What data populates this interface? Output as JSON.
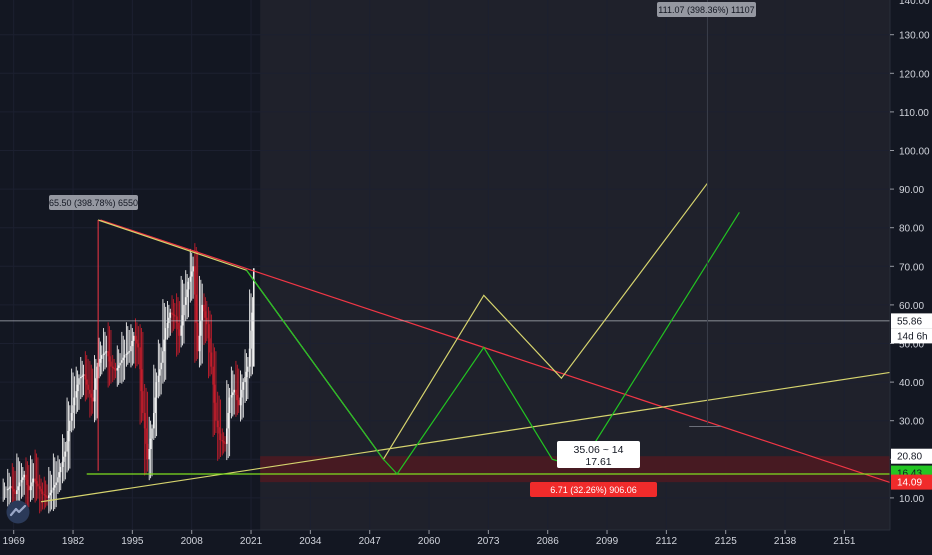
{
  "chart_data": {
    "type": "line",
    "title": "",
    "x_ticks": [
      "1969",
      "1982",
      "1995",
      "2008",
      "2021",
      "2034",
      "2047",
      "2060",
      "2073",
      "2086",
      "2099",
      "2112",
      "2125",
      "2138",
      "2151"
    ],
    "y_ticks": [
      "10.00",
      "20.00",
      "30.00",
      "40.00",
      "50.00",
      "60.00",
      "70.00",
      "80.00",
      "90.00",
      "100.00",
      "110.00",
      "120.00",
      "130.00"
    ],
    "y_top_partial": "140.00",
    "ylim": [
      5,
      142
    ],
    "xlim": [
      1966,
      2161
    ],
    "grid": true,
    "price_bars": {
      "years": [
        1967,
        1968,
        1969,
        1970,
        1971,
        1972,
        1973,
        1974,
        1975,
        1976,
        1977,
        1978,
        1979,
        1980,
        1981,
        1982,
        1983,
        1984,
        1985,
        1986,
        1987,
        1988,
        1989,
        1990,
        1991,
        1992,
        1993,
        1994,
        1995,
        1996,
        1997,
        1998,
        1999,
        2000,
        2001,
        2002,
        2003,
        2004,
        2005,
        2006,
        2007,
        2008,
        2009,
        2010,
        2011,
        2012,
        2013,
        2014,
        2015,
        2016,
        2017,
        2018,
        2019,
        2020,
        2021
      ],
      "close": [
        12,
        13,
        11,
        14,
        16,
        12,
        15,
        13,
        11,
        10,
        12,
        14,
        18,
        22,
        30,
        36,
        41,
        42,
        38,
        35,
        44,
        47,
        48,
        44,
        43,
        45,
        47,
        48,
        52,
        49,
        32,
        20,
        28,
        40,
        45,
        54,
        58,
        57,
        52,
        60,
        66,
        70,
        48,
        60,
        55,
        44,
        30,
        25,
        24,
        36,
        38,
        34,
        40,
        44,
        58
      ]
    },
    "series": [
      {
        "values": [
          [
            1987.5,
            82
          ],
          [
            2020,
            69
          ],
          [
            2050,
            20
          ],
          [
            2072,
            62.5
          ],
          [
            2089,
            41
          ],
          [
            2121,
            91.5
          ]
        ]
      },
      {
        "values": [
          [
            2020,
            69
          ],
          [
            2050,
            20
          ],
          [
            2053,
            16.2
          ],
          [
            2072,
            49
          ],
          [
            2087,
            20
          ],
          [
            2093,
            18
          ],
          [
            2128,
            84
          ]
        ]
      }
    ],
    "trendlines": [
      {
        "from": [
          1988,
          82
        ],
        "to": [
          2161,
          14
        ]
      },
      {
        "from": [
          1975,
          9
        ],
        "to": [
          2161,
          42.5
        ]
      },
      {
        "from": [
          1985,
          16.2
        ],
        "to": [
          2161,
          16.2
        ]
      }
    ],
    "zone": {
      "x_from": 2023,
      "x_to": 2161,
      "y_from": 14.09,
      "y_to": 20.8
    },
    "crosshair_price": 55.86,
    "annotations": {
      "left_label": "65.50 (398.78%) 6550",
      "top_label": "111.07 (398.36%) 11107",
      "range_label_line1": "35.06 ~ 14",
      "range_label_line2": "17.61",
      "zone_label": "6.71 (32.26%) 906.06"
    },
    "price_tags": {
      "crosshair": "55.86",
      "countdown": "14d 6h",
      "zone_top": "20.80",
      "green": "16.43",
      "red": "14.09"
    },
    "colors": {
      "background": "#131722",
      "future_background": "#1f212b",
      "grid": "#1c2030",
      "trend_red": "#f23645",
      "yellow_line": "#d6d46e",
      "green_line": "#22c322",
      "green_base": "#7fdf1f",
      "zone": "#4a1a22",
      "bull": "#f0f0f0",
      "bear": "#c41e2c",
      "tag_green": "#23c623",
      "tag_red": "#f02b2b"
    }
  }
}
